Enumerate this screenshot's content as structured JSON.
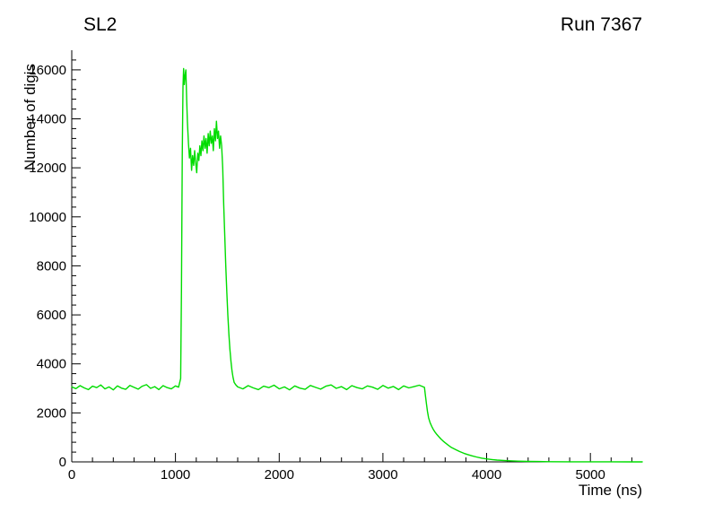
{
  "header": {
    "left_title": "SL2",
    "right_title": "Run 7367"
  },
  "chart_data": {
    "type": "line",
    "title_left": "SL2",
    "title_right": "Run 7367",
    "xlabel": "Time (ns)",
    "ylabel": "Number of digis",
    "xlim": [
      0,
      5500
    ],
    "ylim": [
      0,
      16800
    ],
    "x_ticks": [
      0,
      1000,
      2000,
      3000,
      4000,
      5000
    ],
    "y_ticks": [
      0,
      2000,
      4000,
      6000,
      8000,
      10000,
      12000,
      14000,
      16000
    ],
    "x_minor_step": 200,
    "y_minor_step": 400,
    "grid": false,
    "legend": "none",
    "line_color": "#00dc00",
    "axis_color": "#000000",
    "background_color": "#ffffff",
    "points": [
      [
        0,
        3060
      ],
      [
        40,
        2990
      ],
      [
        80,
        3110
      ],
      [
        120,
        3020
      ],
      [
        160,
        2950
      ],
      [
        200,
        3090
      ],
      [
        240,
        3030
      ],
      [
        280,
        3140
      ],
      [
        320,
        2980
      ],
      [
        360,
        3060
      ],
      [
        400,
        2940
      ],
      [
        440,
        3100
      ],
      [
        480,
        3010
      ],
      [
        520,
        2960
      ],
      [
        560,
        3120
      ],
      [
        600,
        3040
      ],
      [
        640,
        2970
      ],
      [
        680,
        3090
      ],
      [
        720,
        3150
      ],
      [
        760,
        3000
      ],
      [
        800,
        3070
      ],
      [
        840,
        2950
      ],
      [
        880,
        3110
      ],
      [
        920,
        3030
      ],
      [
        960,
        2980
      ],
      [
        1000,
        3100
      ],
      [
        1030,
        3050
      ],
      [
        1050,
        3400
      ],
      [
        1058,
        7000
      ],
      [
        1065,
        12500
      ],
      [
        1072,
        15300
      ],
      [
        1078,
        16050
      ],
      [
        1085,
        15400
      ],
      [
        1092,
        15750
      ],
      [
        1100,
        16000
      ],
      [
        1108,
        14800
      ],
      [
        1115,
        13900
      ],
      [
        1125,
        13000
      ],
      [
        1135,
        12400
      ],
      [
        1145,
        12800
      ],
      [
        1155,
        11900
      ],
      [
        1165,
        12500
      ],
      [
        1175,
        12100
      ],
      [
        1185,
        12700
      ],
      [
        1195,
        12200
      ],
      [
        1205,
        11800
      ],
      [
        1215,
        12600
      ],
      [
        1225,
        12300
      ],
      [
        1235,
        12900
      ],
      [
        1245,
        12500
      ],
      [
        1255,
        13100
      ],
      [
        1265,
        12700
      ],
      [
        1275,
        13300
      ],
      [
        1285,
        12800
      ],
      [
        1295,
        13200
      ],
      [
        1305,
        12600
      ],
      [
        1315,
        13400
      ],
      [
        1325,
        12900
      ],
      [
        1335,
        13500
      ],
      [
        1345,
        13000
      ],
      [
        1355,
        13300
      ],
      [
        1365,
        12700
      ],
      [
        1375,
        13600
      ],
      [
        1385,
        13100
      ],
      [
        1395,
        13900
      ],
      [
        1405,
        13200
      ],
      [
        1415,
        13500
      ],
      [
        1425,
        12800
      ],
      [
        1435,
        13300
      ],
      [
        1445,
        12900
      ],
      [
        1455,
        12000
      ],
      [
        1465,
        10500
      ],
      [
        1475,
        9200
      ],
      [
        1485,
        8000
      ],
      [
        1495,
        6900
      ],
      [
        1505,
        6000
      ],
      [
        1515,
        5200
      ],
      [
        1525,
        4600
      ],
      [
        1535,
        4100
      ],
      [
        1545,
        3700
      ],
      [
        1555,
        3450
      ],
      [
        1565,
        3250
      ],
      [
        1580,
        3150
      ],
      [
        1600,
        3060
      ],
      [
        1650,
        2980
      ],
      [
        1700,
        3110
      ],
      [
        1750,
        3020
      ],
      [
        1800,
        2950
      ],
      [
        1850,
        3090
      ],
      [
        1900,
        3030
      ],
      [
        1950,
        3130
      ],
      [
        2000,
        2980
      ],
      [
        2050,
        3060
      ],
      [
        2100,
        2940
      ],
      [
        2150,
        3100
      ],
      [
        2200,
        3010
      ],
      [
        2250,
        2960
      ],
      [
        2300,
        3120
      ],
      [
        2350,
        3040
      ],
      [
        2400,
        2970
      ],
      [
        2450,
        3090
      ],
      [
        2500,
        3140
      ],
      [
        2550,
        3000
      ],
      [
        2600,
        3070
      ],
      [
        2650,
        2950
      ],
      [
        2700,
        3110
      ],
      [
        2750,
        3030
      ],
      [
        2800,
        2980
      ],
      [
        2850,
        3100
      ],
      [
        2900,
        3050
      ],
      [
        2950,
        2960
      ],
      [
        3000,
        3120
      ],
      [
        3050,
        3010
      ],
      [
        3100,
        3080
      ],
      [
        3150,
        2950
      ],
      [
        3200,
        3100
      ],
      [
        3250,
        3020
      ],
      [
        3300,
        3070
      ],
      [
        3350,
        3130
      ],
      [
        3400,
        3040
      ],
      [
        3410,
        2700
      ],
      [
        3420,
        2350
      ],
      [
        3430,
        2050
      ],
      [
        3440,
        1800
      ],
      [
        3455,
        1600
      ],
      [
        3470,
        1450
      ],
      [
        3485,
        1330
      ],
      [
        3500,
        1230
      ],
      [
        3520,
        1120
      ],
      [
        3540,
        1020
      ],
      [
        3560,
        930
      ],
      [
        3580,
        850
      ],
      [
        3600,
        780
      ],
      [
        3630,
        680
      ],
      [
        3660,
        590
      ],
      [
        3700,
        500
      ],
      [
        3740,
        420
      ],
      [
        3780,
        350
      ],
      [
        3820,
        295
      ],
      [
        3860,
        245
      ],
      [
        3900,
        200
      ],
      [
        3950,
        155
      ],
      [
        4000,
        120
      ],
      [
        4050,
        95
      ],
      [
        4100,
        75
      ],
      [
        4200,
        48
      ],
      [
        4300,
        30
      ],
      [
        4400,
        20
      ],
      [
        4500,
        13
      ],
      [
        4600,
        9
      ],
      [
        4800,
        5
      ],
      [
        5000,
        3
      ],
      [
        5200,
        2
      ],
      [
        5400,
        1
      ],
      [
        5500,
        1
      ]
    ]
  }
}
